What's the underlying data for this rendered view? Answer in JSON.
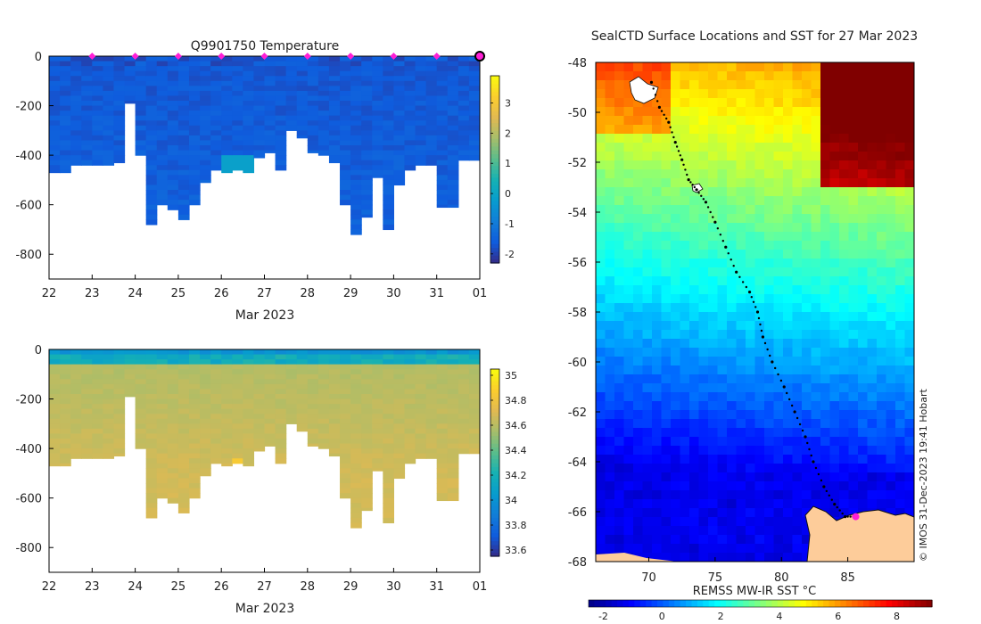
{
  "chart_data": [
    {
      "type": "heatmap",
      "title": "Q9901750  Temperature",
      "xlabel": "Mar 2023",
      "ylabel": "",
      "x_ticks": [
        "22",
        "23",
        "24",
        "25",
        "26",
        "27",
        "28",
        "29",
        "30",
        "31",
        "01"
      ],
      "y_ticks": [
        0,
        -200,
        -400,
        -600,
        -800
      ],
      "ylim": [
        -900,
        0
      ],
      "colorbar": {
        "ticks": [
          3,
          2,
          1,
          0,
          -1,
          -2
        ],
        "range": [
          -2.3,
          3.9
        ]
      },
      "value_range": [
        -1.5,
        -0.5
      ],
      "profile_days": [
        22.0,
        22.25,
        22.5,
        22.75,
        23.0,
        23.25,
        23.5,
        23.75,
        24.0,
        24.25,
        24.5,
        24.75,
        25.0,
        25.25,
        25.5,
        25.75,
        26.0,
        26.25,
        26.5,
        26.75,
        27.0,
        27.25,
        27.5,
        27.75,
        28.0,
        28.25,
        28.5,
        28.75,
        29.0,
        29.25,
        29.5,
        29.75,
        30.0,
        30.25,
        30.5,
        30.75,
        31.0,
        31.25,
        31.5,
        31.75
      ],
      "profile_depths": [
        -470,
        -470,
        -440,
        -440,
        -440,
        -440,
        -430,
        -190,
        -400,
        -680,
        -600,
        -620,
        -660,
        -600,
        -510,
        -460,
        -470,
        -460,
        -470,
        -410,
        -390,
        -460,
        -300,
        -330,
        -390,
        -400,
        -430,
        -600,
        -720,
        -650,
        -490,
        -700,
        -520,
        -460,
        -440,
        -440,
        -610,
        -610,
        -420,
        -420
      ],
      "markers_days": [
        23,
        24,
        25,
        26,
        27,
        28,
        29,
        30,
        31
      ],
      "current_day": 32
    },
    {
      "type": "heatmap",
      "title": "",
      "xlabel": "Mar 2023",
      "ylabel": "",
      "x_ticks": [
        "22",
        "23",
        "24",
        "25",
        "26",
        "27",
        "28",
        "29",
        "30",
        "31",
        "01"
      ],
      "y_ticks": [
        0,
        -200,
        -400,
        -600,
        -800
      ],
      "ylim": [
        -900,
        0
      ],
      "colorbar": {
        "ticks": [
          35,
          34.8,
          34.6,
          34.4,
          34.2,
          34,
          33.8,
          33.6
        ],
        "range": [
          33.55,
          35.05
        ]
      },
      "value_range": [
        33.9,
        34.7
      ],
      "profile_days": [
        22.0,
        22.25,
        22.5,
        22.75,
        23.0,
        23.25,
        23.5,
        23.75,
        24.0,
        24.25,
        24.5,
        24.75,
        25.0,
        25.25,
        25.5,
        25.75,
        26.0,
        26.25,
        26.5,
        26.75,
        27.0,
        27.25,
        27.5,
        27.75,
        28.0,
        28.25,
        28.5,
        28.75,
        29.0,
        29.25,
        29.5,
        29.75,
        30.0,
        30.25,
        30.5,
        30.75,
        31.0,
        31.25,
        31.5,
        31.75
      ],
      "profile_depths": [
        -470,
        -470,
        -440,
        -440,
        -440,
        -440,
        -430,
        -190,
        -400,
        -680,
        -600,
        -620,
        -660,
        -600,
        -510,
        -460,
        -470,
        -460,
        -470,
        -410,
        -390,
        -460,
        -300,
        -330,
        -390,
        -400,
        -430,
        -600,
        -720,
        -650,
        -490,
        -700,
        -520,
        -460,
        -440,
        -440,
        -610,
        -610,
        -420,
        -420
      ]
    },
    {
      "type": "heatmap",
      "title": "SealCTD Surface Locations and SST for 27 Mar 2023",
      "xlabel": "REMSS MW-IR SST °C",
      "x_ticks": [
        70,
        75,
        80,
        85
      ],
      "y_ticks": [
        -48,
        -50,
        -52,
        -54,
        -56,
        -58,
        -60,
        -62,
        -64,
        -66,
        -68
      ],
      "xlim": [
        66,
        90
      ],
      "ylim": [
        -68,
        -48
      ],
      "colorbar": {
        "ticks": [
          -2,
          0,
          2,
          4,
          6,
          8
        ],
        "range": [
          -2.5,
          9.2
        ]
      },
      "track": [
        [
          70.2,
          -48.8
        ],
        [
          70.8,
          -49.8
        ],
        [
          71.5,
          -50.4
        ],
        [
          72.0,
          -51.2
        ],
        [
          72.5,
          -51.9
        ],
        [
          73.0,
          -52.7
        ],
        [
          73.6,
          -53.1
        ],
        [
          74.3,
          -53.6
        ],
        [
          75.0,
          -54.4
        ],
        [
          75.8,
          -55.4
        ],
        [
          76.6,
          -56.4
        ],
        [
          77.6,
          -57.2
        ],
        [
          78.2,
          -58.0
        ],
        [
          78.6,
          -59.0
        ],
        [
          79.3,
          -60.0
        ],
        [
          80.2,
          -61.0
        ],
        [
          81.0,
          -62.0
        ],
        [
          81.8,
          -63.0
        ],
        [
          82.4,
          -64.0
        ],
        [
          83.2,
          -65.0
        ],
        [
          84.0,
          -65.7
        ],
        [
          84.8,
          -66.2
        ],
        [
          85.6,
          -66.2
        ]
      ],
      "current_position": [
        85.6,
        -66.2
      ],
      "credit": "© IMOS 31-Dec-2023 19:41 Hobart"
    }
  ]
}
